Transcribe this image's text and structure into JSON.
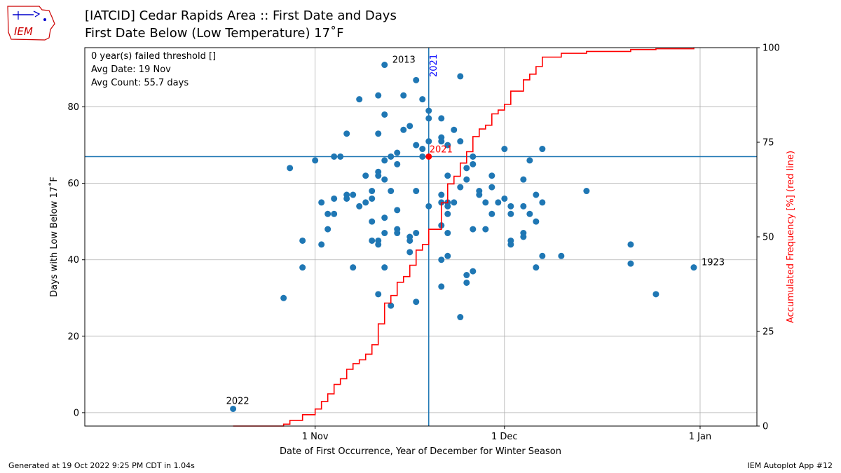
{
  "header": {
    "title_line1": "[IATCID] Cedar Rapids Area :: First Date and Days",
    "title_line2": "First Date Below (Low Temperature) 17˚F",
    "logo_text": "IEM"
  },
  "footer": {
    "left": "Generated at 19 Oct 2022 9:25 PM CDT in 1.04s",
    "right": "IEM Autoplot App #12"
  },
  "chart_data": {
    "type": "scatter",
    "xlabel": "Date of First Occurrence, Year of December for Winter Season",
    "ylabel": "Days with Low Below 17˚F",
    "y2label": "Accumulated Frequency [%] (red line)",
    "x_unit": "days from 1 Nov",
    "xlim": [
      -36.5,
      70
    ],
    "ylim": [
      -3.5,
      95.5
    ],
    "y2lim": [
      0,
      100
    ],
    "x_ticks": [
      {
        "value": 0,
        "label": "1 Nov"
      },
      {
        "value": 30,
        "label": "1 Dec"
      },
      {
        "value": 61,
        "label": "1 Jan"
      }
    ],
    "y_ticks": [
      0,
      20,
      40,
      60,
      80
    ],
    "y2_ticks": [
      0,
      25,
      50,
      75,
      100
    ],
    "grid": true,
    "info_lines": [
      "0 year(s) failed threshold []",
      "Avg Date: 19 Nov",
      "Avg Count: 55.7 days"
    ],
    "point_color": "#1f77b4",
    "line_color": "#ff0000",
    "highlight_color": "#ff0000",
    "vline_label_color": "#0000ff",
    "reference_line_color": "#1f77b4",
    "reference": {
      "x": 18,
      "y": 67,
      "vline_label": "2021",
      "point_label": "2021"
    },
    "point_labels": [
      {
        "x": -13,
        "y": 1,
        "text": "2022"
      },
      {
        "x": 11,
        "y": 91,
        "text": "2013"
      },
      {
        "x": 60,
        "y": 38,
        "text": "1923"
      }
    ],
    "points": [
      {
        "x": -13,
        "y": 1
      },
      {
        "x": -5,
        "y": 30
      },
      {
        "x": -4,
        "y": 64
      },
      {
        "x": -2,
        "y": 45
      },
      {
        "x": -2,
        "y": 38
      },
      {
        "x": 0,
        "y": 66
      },
      {
        "x": 1,
        "y": 55
      },
      {
        "x": 1,
        "y": 44
      },
      {
        "x": 2,
        "y": 52
      },
      {
        "x": 2,
        "y": 48
      },
      {
        "x": 3,
        "y": 67
      },
      {
        "x": 3,
        "y": 56
      },
      {
        "x": 3,
        "y": 52
      },
      {
        "x": 4,
        "y": 67
      },
      {
        "x": 5,
        "y": 73
      },
      {
        "x": 5,
        "y": 57
      },
      {
        "x": 5,
        "y": 56
      },
      {
        "x": 6,
        "y": 57
      },
      {
        "x": 6,
        "y": 38
      },
      {
        "x": 7,
        "y": 82
      },
      {
        "x": 7,
        "y": 54
      },
      {
        "x": 8,
        "y": 62
      },
      {
        "x": 8,
        "y": 55
      },
      {
        "x": 9,
        "y": 58
      },
      {
        "x": 9,
        "y": 56
      },
      {
        "x": 9,
        "y": 50
      },
      {
        "x": 9,
        "y": 45
      },
      {
        "x": 10,
        "y": 83
      },
      {
        "x": 10,
        "y": 73
      },
      {
        "x": 10,
        "y": 63
      },
      {
        "x": 10,
        "y": 62
      },
      {
        "x": 10,
        "y": 45
      },
      {
        "x": 10,
        "y": 44
      },
      {
        "x": 10,
        "y": 31
      },
      {
        "x": 11,
        "y": 91
      },
      {
        "x": 11,
        "y": 78
      },
      {
        "x": 11,
        "y": 66
      },
      {
        "x": 11,
        "y": 61
      },
      {
        "x": 11,
        "y": 51
      },
      {
        "x": 11,
        "y": 47
      },
      {
        "x": 11,
        "y": 38
      },
      {
        "x": 12,
        "y": 67
      },
      {
        "x": 12,
        "y": 58
      },
      {
        "x": 12,
        "y": 28
      },
      {
        "x": 13,
        "y": 68
      },
      {
        "x": 13,
        "y": 65
      },
      {
        "x": 13,
        "y": 53
      },
      {
        "x": 13,
        "y": 48
      },
      {
        "x": 13,
        "y": 47
      },
      {
        "x": 14,
        "y": 83
      },
      {
        "x": 14,
        "y": 74
      },
      {
        "x": 15,
        "y": 75
      },
      {
        "x": 15,
        "y": 46
      },
      {
        "x": 15,
        "y": 45
      },
      {
        "x": 15,
        "y": 42
      },
      {
        "x": 16,
        "y": 87
      },
      {
        "x": 16,
        "y": 70
      },
      {
        "x": 16,
        "y": 58
      },
      {
        "x": 16,
        "y": 47
      },
      {
        "x": 16,
        "y": 29
      },
      {
        "x": 17,
        "y": 82
      },
      {
        "x": 17,
        "y": 69
      },
      {
        "x": 17,
        "y": 67
      },
      {
        "x": 18,
        "y": 79
      },
      {
        "x": 18,
        "y": 77
      },
      {
        "x": 18,
        "y": 71
      },
      {
        "x": 18,
        "y": 54
      },
      {
        "x": 20,
        "y": 77
      },
      {
        "x": 20,
        "y": 72
      },
      {
        "x": 20,
        "y": 71
      },
      {
        "x": 20,
        "y": 57
      },
      {
        "x": 20,
        "y": 55
      },
      {
        "x": 20,
        "y": 49
      },
      {
        "x": 20,
        "y": 40
      },
      {
        "x": 20,
        "y": 33
      },
      {
        "x": 21,
        "y": 70
      },
      {
        "x": 21,
        "y": 62
      },
      {
        "x": 21,
        "y": 55
      },
      {
        "x": 21,
        "y": 54
      },
      {
        "x": 21,
        "y": 52
      },
      {
        "x": 21,
        "y": 47
      },
      {
        "x": 21,
        "y": 41
      },
      {
        "x": 22,
        "y": 74
      },
      {
        "x": 22,
        "y": 55
      },
      {
        "x": 23,
        "y": 88
      },
      {
        "x": 23,
        "y": 71
      },
      {
        "x": 23,
        "y": 59
      },
      {
        "x": 23,
        "y": 25
      },
      {
        "x": 24,
        "y": 64
      },
      {
        "x": 24,
        "y": 61
      },
      {
        "x": 24,
        "y": 36
      },
      {
        "x": 24,
        "y": 34
      },
      {
        "x": 25,
        "y": 67
      },
      {
        "x": 25,
        "y": 65
      },
      {
        "x": 25,
        "y": 48
      },
      {
        "x": 25,
        "y": 37
      },
      {
        "x": 26,
        "y": 58
      },
      {
        "x": 26,
        "y": 57
      },
      {
        "x": 27,
        "y": 55
      },
      {
        "x": 27,
        "y": 48
      },
      {
        "x": 28,
        "y": 62
      },
      {
        "x": 28,
        "y": 59
      },
      {
        "x": 28,
        "y": 52
      },
      {
        "x": 29,
        "y": 55
      },
      {
        "x": 30,
        "y": 69
      },
      {
        "x": 30,
        "y": 56
      },
      {
        "x": 31,
        "y": 54
      },
      {
        "x": 31,
        "y": 52
      },
      {
        "x": 31,
        "y": 45
      },
      {
        "x": 31,
        "y": 44
      },
      {
        "x": 33,
        "y": 61
      },
      {
        "x": 33,
        "y": 54
      },
      {
        "x": 33,
        "y": 47
      },
      {
        "x": 33,
        "y": 46
      },
      {
        "x": 34,
        "y": 66
      },
      {
        "x": 34,
        "y": 52
      },
      {
        "x": 35,
        "y": 57
      },
      {
        "x": 35,
        "y": 50
      },
      {
        "x": 35,
        "y": 38
      },
      {
        "x": 36,
        "y": 69
      },
      {
        "x": 36,
        "y": 55
      },
      {
        "x": 36,
        "y": 41
      },
      {
        "x": 39,
        "y": 41
      },
      {
        "x": 43,
        "y": 58
      },
      {
        "x": 50,
        "y": 44
      },
      {
        "x": 50,
        "y": 39
      },
      {
        "x": 54,
        "y": 31
      },
      {
        "x": 60,
        "y": 38
      }
    ],
    "cumulative_line": {
      "name": "Accumulated Frequency [%]",
      "x": [
        -13,
        -5,
        -4,
        -2,
        0,
        1,
        2,
        3,
        4,
        5,
        6,
        7,
        8,
        9,
        10,
        11,
        12,
        13,
        14,
        15,
        16,
        17,
        18,
        20,
        21,
        22,
        23,
        24,
        25,
        26,
        27,
        28,
        29,
        30,
        31,
        33,
        34,
        35,
        36,
        39,
        43,
        50,
        54,
        60
      ],
      "y": [
        0.0,
        0.5,
        1.5,
        3.0,
        4.5,
        6.5,
        8.5,
        11.0,
        12.5,
        15.0,
        16.5,
        17.5,
        19.0,
        21.5,
        27.0,
        32.5,
        34.5,
        38.0,
        39.5,
        42.5,
        46.5,
        48.0,
        52.0,
        59.0,
        64.0,
        66.0,
        69.5,
        72.5,
        76.5,
        78.5,
        79.5,
        82.5,
        83.5,
        85.0,
        88.5,
        91.5,
        93.0,
        95.0,
        97.5,
        98.5,
        99.0,
        99.5,
        99.7,
        100.0
      ]
    }
  }
}
